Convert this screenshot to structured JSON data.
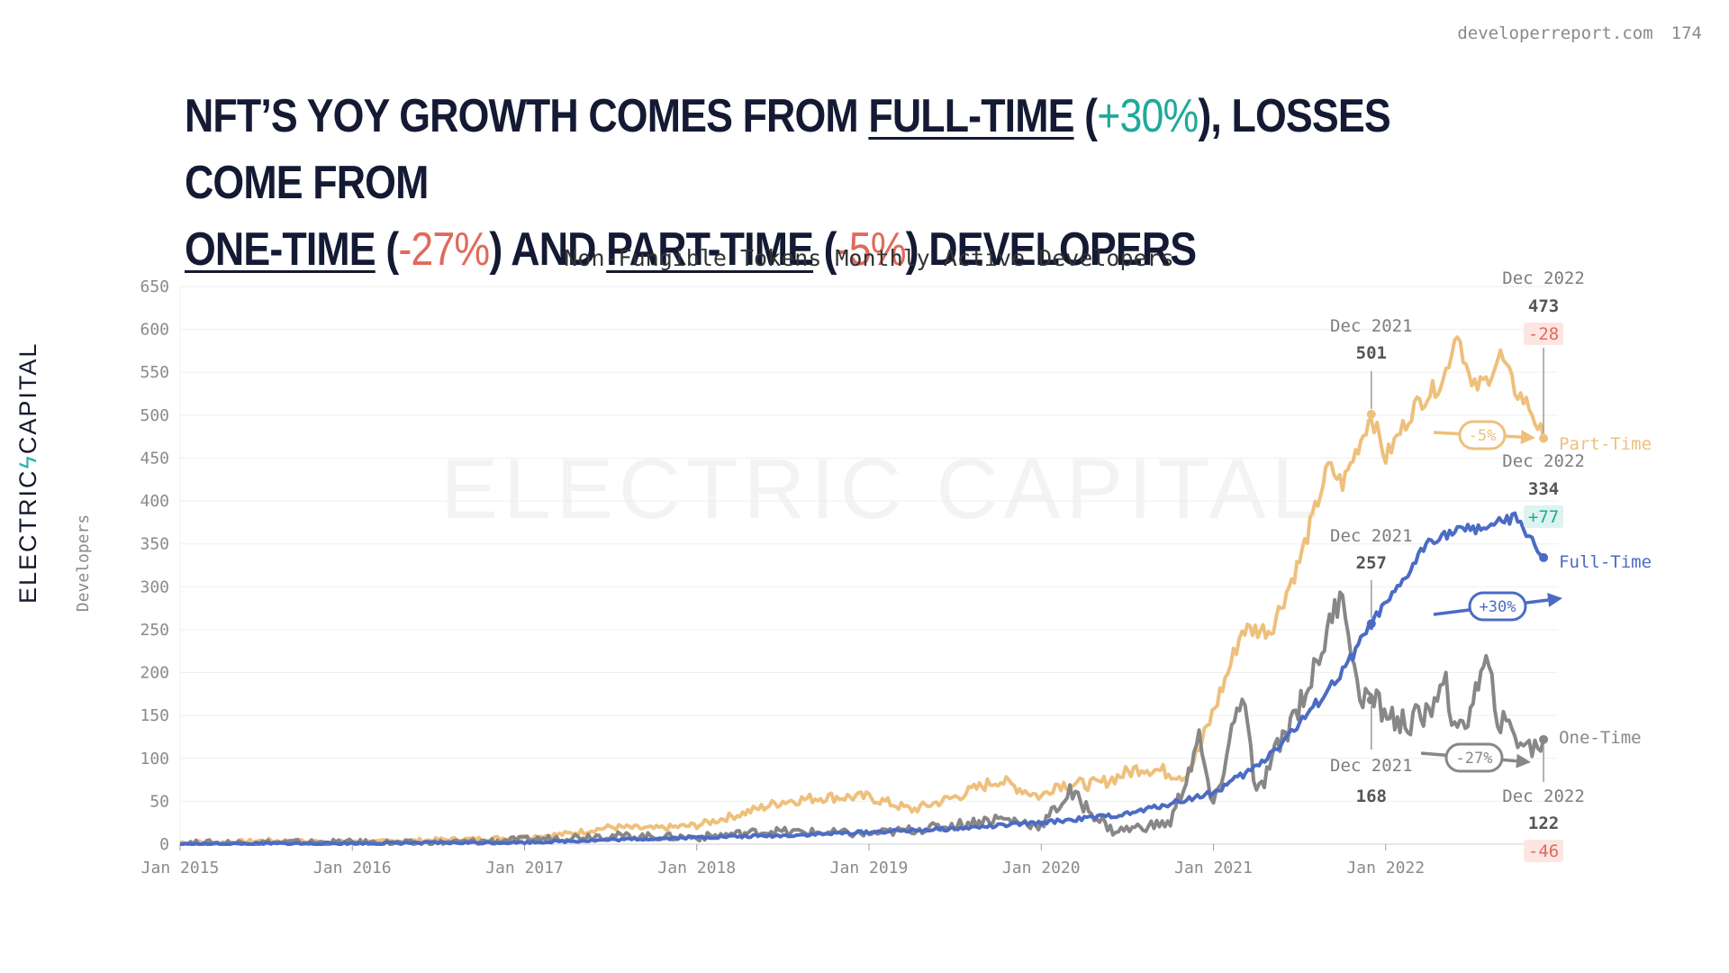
{
  "page": {
    "site": "developerreport.com",
    "page_number": "174"
  },
  "headline": {
    "p1": "NFT’S YOY GROWTH COMES FROM ",
    "ft": "FULL-TIME",
    "ft_pct": "+30%",
    "p2": "), LOSSES COME FROM ",
    "ot": "ONE-TIME",
    "ot_pct": "-27%",
    "p3": ") AND ",
    "pt": "PART-TIME",
    "pt_pct": "-5%",
    "p4": ") DEVELOPERS"
  },
  "brand": {
    "name": "ELECTRIC CAPITAL",
    "left": "ELECTRIC",
    "right": "CAPITAL",
    "watermark": "ELECTRIC CAPITAL"
  },
  "colors": {
    "part_time": "#eec07c",
    "full_time": "#4b6bc5",
    "one_time": "#878787",
    "positive": "#1fa99a",
    "negative": "#e06a5c",
    "grid": "#eeeeee",
    "axis_text": "#7f7f7f"
  },
  "chart_data": {
    "type": "line",
    "title": "Non-Fungible Tokens Monthly Active Developers",
    "ylabel": "Developers",
    "xlabel": "",
    "ylim": [
      0,
      650
    ],
    "yticks": [
      0,
      50,
      100,
      150,
      200,
      250,
      300,
      350,
      400,
      450,
      500,
      550,
      600,
      650
    ],
    "xlim": [
      "2015-01",
      "2023-01"
    ],
    "xticks": [
      {
        "label": "Jan 2015",
        "date": "2015-01"
      },
      {
        "label": "Jan 2016",
        "date": "2016-01"
      },
      {
        "label": "Jan 2017",
        "date": "2017-01"
      },
      {
        "label": "Jan 2018",
        "date": "2018-01"
      },
      {
        "label": "Jan 2019",
        "date": "2019-01"
      },
      {
        "label": "Jan 2020",
        "date": "2020-01"
      },
      {
        "label": "Jan 2021",
        "date": "2021-01"
      },
      {
        "label": "Jan 2022",
        "date": "2022-01"
      }
    ],
    "grid": true,
    "series": [
      {
        "name": "Part-Time",
        "color": "#eec07c",
        "points": [
          [
            "2015-01",
            2
          ],
          [
            "2015-04",
            2
          ],
          [
            "2015-07",
            4
          ],
          [
            "2015-10",
            3
          ],
          [
            "2016-01",
            2
          ],
          [
            "2016-04",
            3
          ],
          [
            "2016-07",
            5
          ],
          [
            "2016-10",
            6
          ],
          [
            "2017-01",
            8
          ],
          [
            "2017-04",
            12
          ],
          [
            "2017-07",
            20
          ],
          [
            "2017-10",
            18
          ],
          [
            "2018-01",
            22
          ],
          [
            "2018-04",
            35
          ],
          [
            "2018-07",
            50
          ],
          [
            "2018-10",
            55
          ],
          [
            "2019-01",
            55
          ],
          [
            "2019-04",
            40
          ],
          [
            "2019-07",
            55
          ],
          [
            "2019-10",
            75
          ],
          [
            "2020-01",
            55
          ],
          [
            "2020-02",
            70
          ],
          [
            "2020-05",
            70
          ],
          [
            "2020-08",
            90
          ],
          [
            "2020-11",
            80
          ],
          [
            "2020-12",
            110
          ],
          [
            "2021-02",
            200
          ],
          [
            "2021-03",
            250
          ],
          [
            "2021-05",
            250
          ],
          [
            "2021-07",
            330
          ],
          [
            "2021-09",
            440
          ],
          [
            "2021-10",
            420
          ],
          [
            "2021-12",
            501
          ],
          [
            "2022-01",
            450
          ],
          [
            "2022-02",
            480
          ],
          [
            "2022-03",
            510
          ],
          [
            "2022-05",
            540
          ],
          [
            "2022-06",
            600
          ],
          [
            "2022-07",
            530
          ],
          [
            "2022-08",
            540
          ],
          [
            "2022-09",
            570
          ],
          [
            "2022-10",
            530
          ],
          [
            "2022-11",
            510
          ],
          [
            "2022-12",
            473
          ]
        ]
      },
      {
        "name": "Full-Time",
        "color": "#4b6bc5",
        "points": [
          [
            "2015-01",
            0
          ],
          [
            "2016-01",
            1
          ],
          [
            "2017-01",
            2
          ],
          [
            "2017-07",
            5
          ],
          [
            "2018-01",
            8
          ],
          [
            "2018-07",
            10
          ],
          [
            "2019-01",
            14
          ],
          [
            "2019-07",
            18
          ],
          [
            "2020-01",
            25
          ],
          [
            "2020-07",
            35
          ],
          [
            "2021-01",
            60
          ],
          [
            "2021-04",
            90
          ],
          [
            "2021-07",
            140
          ],
          [
            "2021-10",
            200
          ],
          [
            "2021-12",
            257
          ],
          [
            "2022-02",
            300
          ],
          [
            "2022-04",
            355
          ],
          [
            "2022-06",
            365
          ],
          [
            "2022-08",
            370
          ],
          [
            "2022-10",
            380
          ],
          [
            "2022-11",
            360
          ],
          [
            "2022-12",
            334
          ]
        ]
      },
      {
        "name": "One-Time",
        "color": "#878787",
        "points": [
          [
            "2015-01",
            1
          ],
          [
            "2015-06",
            2
          ],
          [
            "2016-01",
            2
          ],
          [
            "2016-06",
            1
          ],
          [
            "2017-01",
            5
          ],
          [
            "2017-06",
            10
          ],
          [
            "2018-01",
            8
          ],
          [
            "2018-06",
            15
          ],
          [
            "2019-01",
            12
          ],
          [
            "2019-06",
            20
          ],
          [
            "2019-10",
            30
          ],
          [
            "2020-01",
            22
          ],
          [
            "2020-03",
            60
          ],
          [
            "2020-06",
            15
          ],
          [
            "2020-10",
            25
          ],
          [
            "2020-12",
            120
          ],
          [
            "2021-01",
            40
          ],
          [
            "2021-03",
            180
          ],
          [
            "2021-04",
            55
          ],
          [
            "2021-06",
            130
          ],
          [
            "2021-08",
            200
          ],
          [
            "2021-10",
            300
          ],
          [
            "2021-11",
            180
          ],
          [
            "2021-12",
            168
          ],
          [
            "2022-02",
            140
          ],
          [
            "2022-04",
            150
          ],
          [
            "2022-05",
            200
          ],
          [
            "2022-06",
            120
          ],
          [
            "2022-08",
            210
          ],
          [
            "2022-09",
            140
          ],
          [
            "2022-10",
            130
          ],
          [
            "2022-11",
            110
          ],
          [
            "2022-12",
            122
          ]
        ]
      }
    ],
    "annotations": [
      {
        "series": "Part-Time",
        "date": "2021-12",
        "label": "Dec 2021",
        "value": "501"
      },
      {
        "series": "Part-Time",
        "date": "2022-12",
        "label": "Dec 2022",
        "value": "473",
        "change": "-28",
        "pct": "-5%"
      },
      {
        "series": "Full-Time",
        "date": "2021-12",
        "label": "Dec 2021",
        "value": "257"
      },
      {
        "series": "Full-Time",
        "date": "2022-12",
        "label": "Dec 2022",
        "value": "334",
        "change": "+77",
        "pct": "+30%"
      },
      {
        "series": "One-Time",
        "date": "2021-12",
        "label": "Dec 2021",
        "value": "168"
      },
      {
        "series": "One-Time",
        "date": "2022-12",
        "label": "Dec 2022",
        "value": "122",
        "change": "-46",
        "pct": "-27%"
      }
    ]
  }
}
